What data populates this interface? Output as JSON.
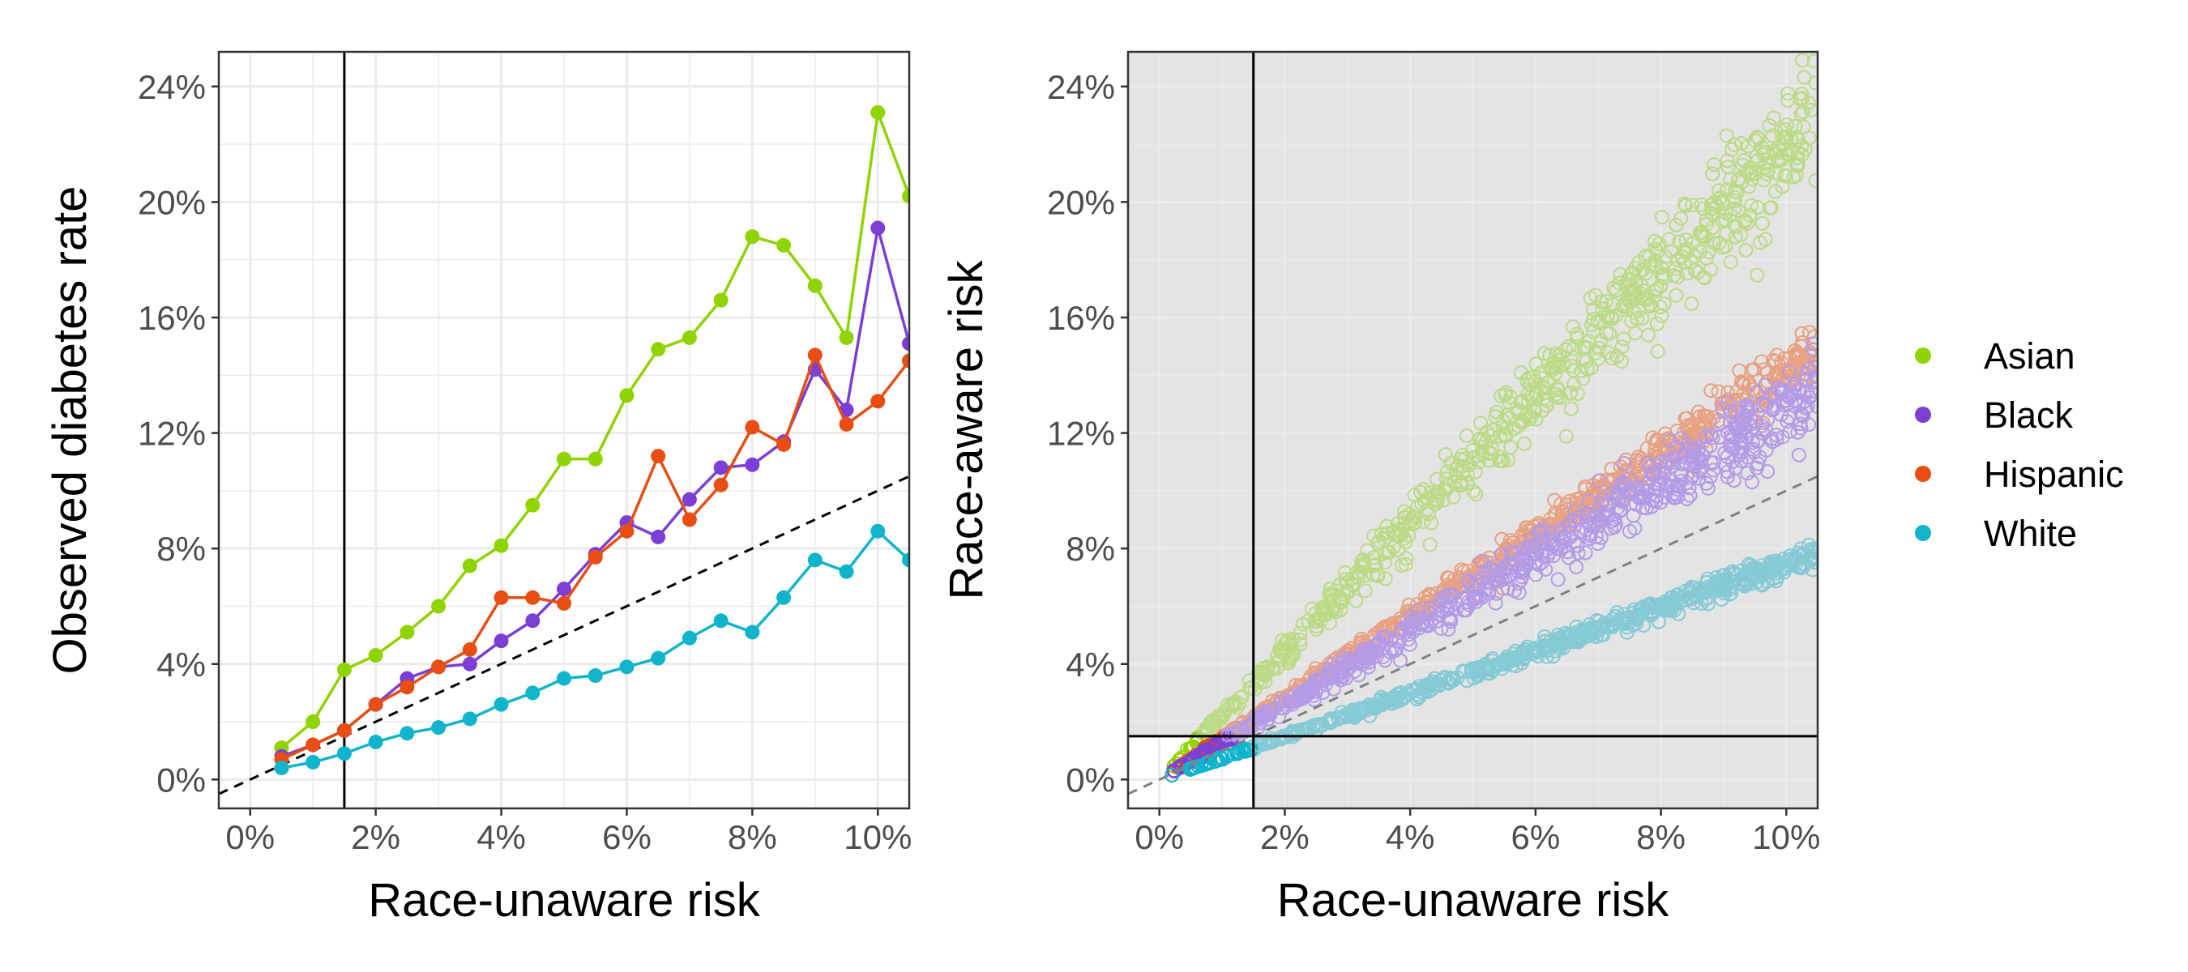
{
  "chart_data": [
    {
      "type": "line",
      "xlabel": "Race-unaware risk",
      "ylabel": "Observed diabetes rate",
      "xlim": [
        -0.5,
        10.5
      ],
      "ylim": [
        -1.0,
        25.2
      ],
      "x_ticks": [
        0,
        2,
        4,
        6,
        8,
        10
      ],
      "y_ticks": [
        0,
        4,
        8,
        12,
        16,
        20,
        24
      ],
      "x_tick_labels": [
        "0%",
        "2%",
        "4%",
        "6%",
        "8%",
        "10%"
      ],
      "y_tick_labels": [
        "0%",
        "4%",
        "8%",
        "12%",
        "16%",
        "20%",
        "24%"
      ],
      "grid": true,
      "reference_line": {
        "type": "diagonal",
        "style": "dashed",
        "color": "#000000"
      },
      "vertical_line": {
        "x": 1.5,
        "color": "#000000"
      },
      "series": [
        {
          "name": "Asian",
          "color": "#8fd400",
          "x": [
            0.5,
            1.0,
            1.5,
            2.0,
            2.5,
            3.0,
            3.5,
            4.0,
            4.5,
            5.0,
            5.5,
            6.0,
            6.5,
            7.0,
            7.5,
            8.0,
            8.5,
            9.0,
            9.5,
            10.0,
            10.5
          ],
          "y": [
            1.1,
            2.0,
            3.8,
            4.3,
            5.1,
            6.0,
            7.4,
            8.1,
            9.5,
            11.1,
            11.1,
            13.3,
            14.9,
            15.3,
            16.6,
            18.8,
            18.5,
            17.1,
            15.3,
            23.1,
            20.2
          ]
        },
        {
          "name": "Black",
          "color": "#7b3fd6",
          "x": [
            0.5,
            1.0,
            1.5,
            2.0,
            2.5,
            3.0,
            3.5,
            4.0,
            4.5,
            5.0,
            5.5,
            6.0,
            6.5,
            7.0,
            7.5,
            8.0,
            8.5,
            9.0,
            9.5,
            10.0,
            10.5
          ],
          "y": [
            0.8,
            1.2,
            1.7,
            2.6,
            3.5,
            3.9,
            4.0,
            4.8,
            5.5,
            6.6,
            7.8,
            8.9,
            8.4,
            9.7,
            10.8,
            10.9,
            11.7,
            14.2,
            12.8,
            19.1,
            15.1
          ]
        },
        {
          "name": "Hispanic",
          "color": "#e84d13",
          "x": [
            0.5,
            1.0,
            1.5,
            2.0,
            2.5,
            3.0,
            3.5,
            4.0,
            4.5,
            5.0,
            5.5,
            6.0,
            6.5,
            7.0,
            7.5,
            8.0,
            8.5,
            9.0,
            9.5,
            10.0,
            10.5
          ],
          "y": [
            0.7,
            1.2,
            1.7,
            2.6,
            3.2,
            3.9,
            4.5,
            6.3,
            6.3,
            6.1,
            7.7,
            8.6,
            11.2,
            9.0,
            10.2,
            12.2,
            11.6,
            14.7,
            12.3,
            13.1,
            14.5
          ]
        },
        {
          "name": "White",
          "color": "#10b5cc",
          "x": [
            0.5,
            1.0,
            1.5,
            2.0,
            2.5,
            3.0,
            3.5,
            4.0,
            4.5,
            5.0,
            5.5,
            6.0,
            6.5,
            7.0,
            7.5,
            8.0,
            8.5,
            9.0,
            9.5,
            10.0,
            10.5
          ],
          "y": [
            0.4,
            0.6,
            0.9,
            1.3,
            1.6,
            1.8,
            2.1,
            2.6,
            3.0,
            3.5,
            3.6,
            3.9,
            4.2,
            4.9,
            5.5,
            5.1,
            6.3,
            7.6,
            7.2,
            8.6,
            7.6
          ]
        }
      ]
    },
    {
      "type": "scatter",
      "xlabel": "Race-unaware risk",
      "ylabel": "Race-aware risk",
      "xlim": [
        -0.5,
        10.5
      ],
      "ylim": [
        -1.0,
        25.2
      ],
      "x_ticks": [
        0,
        2,
        4,
        6,
        8,
        10
      ],
      "y_ticks": [
        0,
        4,
        8,
        12,
        16,
        20,
        24
      ],
      "x_tick_labels": [
        "0%",
        "2%",
        "4%",
        "6%",
        "8%",
        "10%"
      ],
      "y_tick_labels": [
        "0%",
        "4%",
        "8%",
        "12%",
        "16%",
        "20%",
        "24%"
      ],
      "grid": true,
      "reference_line": {
        "type": "diagonal",
        "style": "dashed",
        "color": "#808080"
      },
      "vertical_line": {
        "x": 1.5,
        "color": "#000000"
      },
      "horizontal_line": {
        "y": 1.5,
        "color": "#000000"
      },
      "shaded_region": "outside the lower-left quadrant x < 1.5, y < 1.5",
      "threshold": 1.5,
      "series": [
        {
          "name": "Asian",
          "color": "#8fd400",
          "pale_color": "#bcdb86",
          "ratio": 2.22,
          "spread": 0.1,
          "x_range": [
            0.2,
            10.5
          ]
        },
        {
          "name": "Hispanic",
          "color": "#e84d13",
          "pale_color": "#e8a182",
          "ratio": 1.42,
          "spread": 0.07,
          "x_range": [
            0.2,
            10.5
          ]
        },
        {
          "name": "Black",
          "color": "#7b3fd6",
          "pale_color": "#b49be8",
          "ratio": 1.3,
          "spread": 0.11,
          "x_range": [
            0.2,
            10.5
          ]
        },
        {
          "name": "White",
          "color": "#10b5cc",
          "pale_color": "#86cad6",
          "ratio": 0.75,
          "spread": 0.06,
          "x_range": [
            0.2,
            10.5
          ]
        }
      ]
    }
  ],
  "legend": {
    "position": "right",
    "items": [
      {
        "label": "Asian",
        "color": "#8fd400"
      },
      {
        "label": "Black",
        "color": "#7b3fd6"
      },
      {
        "label": "Hispanic",
        "color": "#e84d13"
      },
      {
        "label": "White",
        "color": "#10b5cc"
      }
    ]
  }
}
